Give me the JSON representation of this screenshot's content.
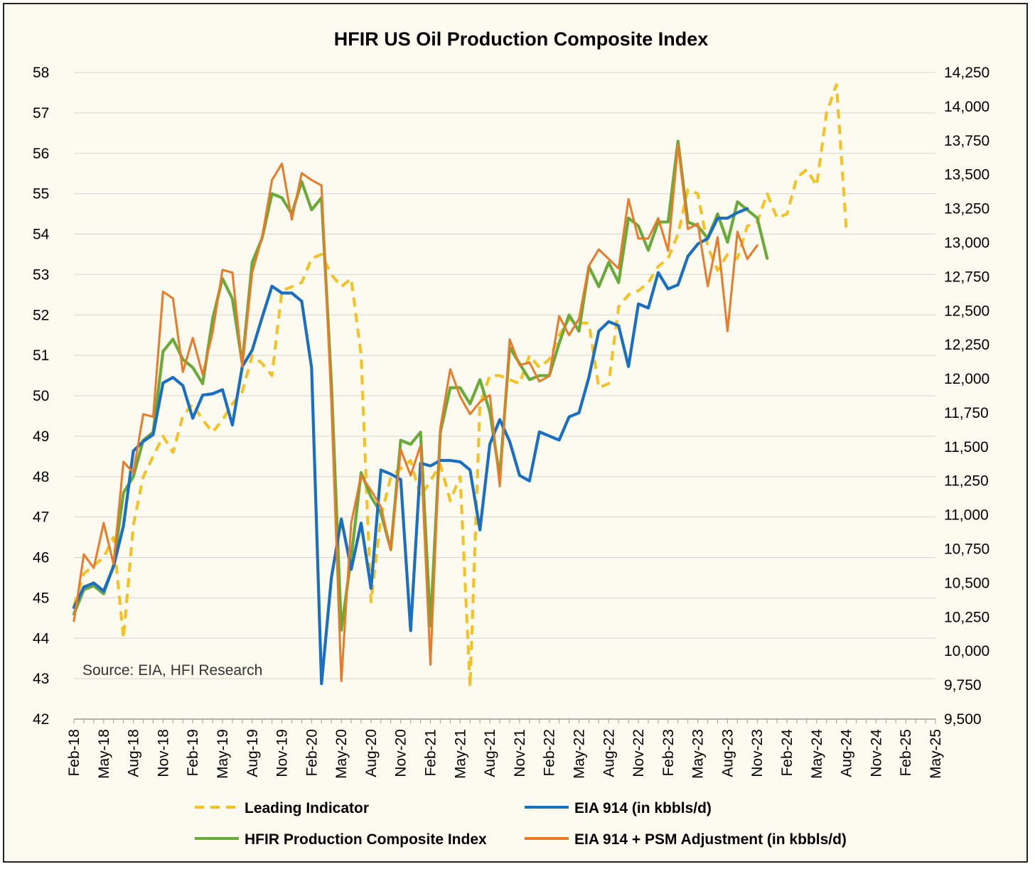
{
  "chart_data": {
    "type": "line",
    "title": "HFIR US Oil Production Composite Index",
    "source_note": "Source: EIA, HFI Research",
    "x_tick_labels": [
      "Feb-18",
      "May-18",
      "Aug-18",
      "Nov-18",
      "Feb-19",
      "May-19",
      "Aug-19",
      "Nov-19",
      "Feb-20",
      "May-20",
      "Aug-20",
      "Nov-20",
      "Feb-21",
      "May-21",
      "Aug-21",
      "Nov-21",
      "Feb-22",
      "May-22",
      "Aug-22",
      "Nov-22",
      "Feb-23",
      "May-23",
      "Aug-23",
      "Nov-23",
      "Feb-24",
      "May-24",
      "Aug-24",
      "Nov-24",
      "Feb-25",
      "May-25"
    ],
    "y_left": {
      "ylim": [
        42,
        58
      ],
      "ticks": [
        "42",
        "43",
        "44",
        "45",
        "46",
        "47",
        "48",
        "49",
        "50",
        "51",
        "52",
        "53",
        "54",
        "55",
        "56",
        "57",
        "58"
      ]
    },
    "y_right": {
      "ylim": [
        9500,
        14250
      ],
      "ticks": [
        "9,500",
        "9,750",
        "10,000",
        "10,250",
        "10,500",
        "10,750",
        "11,000",
        "11,250",
        "11,500",
        "11,750",
        "12,000",
        "12,250",
        "12,500",
        "12,750",
        "13,000",
        "13,250",
        "13,500",
        "13,750",
        "14,000",
        "14,250"
      ]
    },
    "grid": true,
    "legend_position": "bottom",
    "series": [
      {
        "name": "Leading Indicator",
        "axis": "left",
        "color": "#f5c020",
        "dash": true,
        "x_start": "Feb-18",
        "values": [
          44.8,
          45.6,
          45.8,
          46.0,
          46.5,
          44.0,
          46.8,
          48.0,
          48.5,
          49.0,
          48.6,
          49.5,
          49.8,
          49.4,
          49.1,
          49.4,
          49.8,
          50.1,
          51.0,
          50.8,
          50.5,
          52.6,
          52.7,
          52.8,
          53.4,
          53.5,
          53.0,
          52.7,
          52.9,
          51.0,
          44.9,
          47.0,
          48.0,
          48.2,
          48.4,
          47.5,
          47.9,
          48.3,
          47.4,
          48.0,
          42.8,
          49.8,
          50.5,
          50.5,
          50.4,
          50.3,
          51.0,
          50.7,
          50.9,
          51.5,
          51.9,
          51.8,
          51.8,
          50.2,
          50.3,
          52.2,
          52.5,
          52.6,
          52.8,
          53.2,
          53.4,
          54.0,
          55.1,
          55.0,
          53.7,
          53.1,
          53.5,
          53.4,
          54.2,
          54.3,
          55.0,
          54.4,
          54.5,
          55.4,
          55.6,
          55.2,
          57.0,
          57.7,
          54.1
        ]
      },
      {
        "name": "EIA 914 (in kbbls/d)",
        "axis": "right",
        "color": "#1a6fc0",
        "dash": false,
        "x_start": "Feb-18",
        "values": [
          10320,
          10470,
          10500,
          10440,
          10620,
          10920,
          11470,
          11540,
          11590,
          11970,
          12010,
          11950,
          11710,
          11880,
          11890,
          11920,
          11660,
          12090,
          12210,
          12450,
          12680,
          12630,
          12630,
          12570,
          12080,
          9760,
          10540,
          10970,
          10600,
          10940,
          10460,
          11330,
          11300,
          11260,
          10150,
          11380,
          11360,
          11400,
          11400,
          11390,
          11330,
          10890,
          11520,
          11700,
          11540,
          11290,
          11250,
          11610,
          11580,
          11550,
          11720,
          11750,
          12010,
          12350,
          12420,
          12390,
          12090,
          12550,
          12520,
          12780,
          12660,
          12690,
          12900,
          12990,
          13030,
          13180,
          13180,
          13220,
          13250
        ]
      },
      {
        "name": "HFIR Production Composite Index",
        "axis": "left",
        "color": "#6aaa3a",
        "dash": false,
        "x_start": "Feb-18",
        "values": [
          44.6,
          45.2,
          45.3,
          45.1,
          45.8,
          47.6,
          48.0,
          48.9,
          49.1,
          51.1,
          51.4,
          50.9,
          50.7,
          50.3,
          51.9,
          52.9,
          52.4,
          50.8,
          53.3,
          53.9,
          55.0,
          54.9,
          54.5,
          55.3,
          54.6,
          54.9,
          50.3,
          44.2,
          46.0,
          48.1,
          47.5,
          47.1,
          46.2,
          48.9,
          48.8,
          49.1,
          44.3,
          49.1,
          50.2,
          50.2,
          49.8,
          50.4,
          49.6,
          48.0,
          51.2,
          50.8,
          50.4,
          50.5,
          50.5,
          51.3,
          52.0,
          51.6,
          53.2,
          52.7,
          53.3,
          52.8,
          54.4,
          54.2,
          53.6,
          54.3,
          54.3,
          56.3,
          54.3,
          54.2,
          53.9,
          54.5,
          53.8,
          54.8,
          54.6,
          54.4,
          53.4
        ]
      },
      {
        "name": "EIA 914 + PSM Adjustment (in kbbls/d)",
        "axis": "right",
        "color": "#e87a28",
        "dash": false,
        "x_start": "Feb-18",
        "values": [
          10220,
          10710,
          10610,
          10940,
          10640,
          11390,
          11310,
          11740,
          11720,
          12640,
          12590,
          12050,
          12300,
          12030,
          12340,
          12800,
          12780,
          12090,
          12780,
          13040,
          13460,
          13580,
          13170,
          13510,
          13460,
          13420,
          11820,
          9780,
          10940,
          11290,
          11180,
          11060,
          10740,
          11480,
          11290,
          11510,
          9900,
          11640,
          12070,
          11870,
          11740,
          11830,
          11880,
          11210,
          12290,
          12100,
          12120,
          11980,
          12020,
          12460,
          12320,
          12440,
          12830,
          12950,
          12880,
          12810,
          13320,
          13030,
          13030,
          13180,
          12940,
          13720,
          13100,
          13140,
          12680,
          13040,
          12350,
          13080,
          12880,
          12980
        ]
      }
    ]
  }
}
